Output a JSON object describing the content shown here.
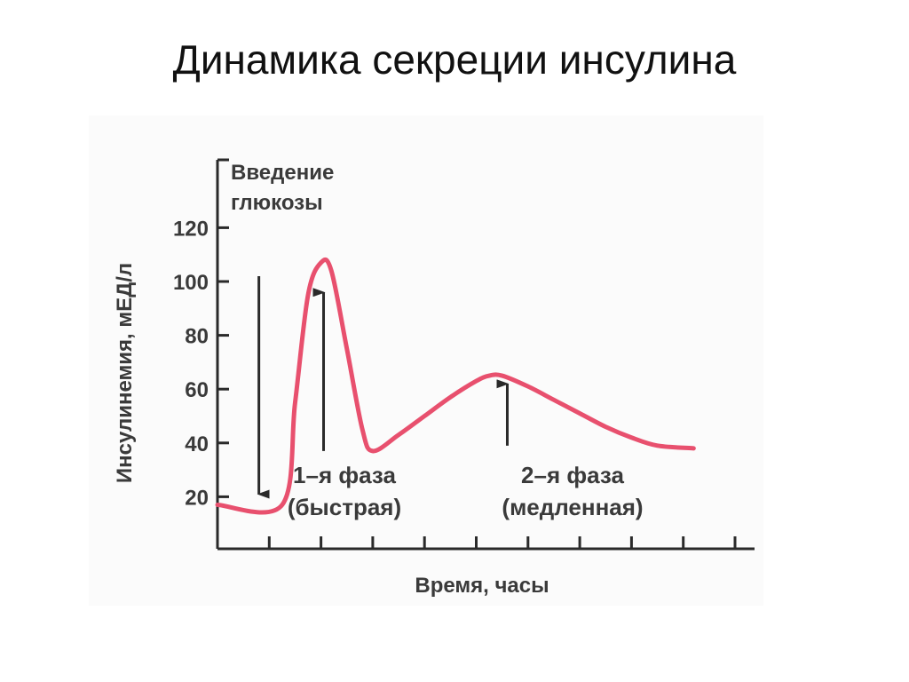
{
  "slide": {
    "title": "Динамика секреции инсулина"
  },
  "chart_data": {
    "type": "line",
    "title": "",
    "xlabel": "Время, часы",
    "ylabel": "Инсулинемия, мЕД/л",
    "yticks": [
      "20",
      "40",
      "60",
      "80",
      "100",
      "120"
    ],
    "ylim": [
      0,
      130
    ],
    "grid": false,
    "legend": "none",
    "series": [
      {
        "name": "",
        "color": "#e8506e",
        "points": [
          {
            "x": 0,
            "y": 17
          },
          {
            "x": 1.25,
            "y": 17
          },
          {
            "x": 1.5,
            "y": 55
          },
          {
            "x": 1.75,
            "y": 95
          },
          {
            "x": 2.0,
            "y": 107
          },
          {
            "x": 2.2,
            "y": 104
          },
          {
            "x": 2.5,
            "y": 75
          },
          {
            "x": 2.8,
            "y": 45
          },
          {
            "x": 3.0,
            "y": 37
          },
          {
            "x": 3.5,
            "y": 43
          },
          {
            "x": 4.0,
            "y": 50
          },
          {
            "x": 4.5,
            "y": 57
          },
          {
            "x": 5.0,
            "y": 63
          },
          {
            "x": 5.25,
            "y": 65
          },
          {
            "x": 5.5,
            "y": 65
          },
          {
            "x": 6.0,
            "y": 61
          },
          {
            "x": 6.5,
            "y": 56
          },
          {
            "x": 7.0,
            "y": 51
          },
          {
            "x": 7.5,
            "y": 46
          },
          {
            "x": 8.0,
            "y": 42
          },
          {
            "x": 8.5,
            "y": 39
          },
          {
            "x": 9.2,
            "y": 38
          }
        ]
      }
    ],
    "annotations": [
      {
        "id": "glucose",
        "lines": [
          "Введение",
          "глюкозы"
        ],
        "x": 0.8,
        "from_y": 102,
        "to_y": 17
      },
      {
        "id": "phase1",
        "lines": [
          "1–я фаза",
          "(быстрая)"
        ],
        "x": 2.05,
        "from_y": 37,
        "to_y": 92
      },
      {
        "id": "phase2",
        "lines": [
          "2–я фаза",
          "(медленная)"
        ],
        "x": 5.6,
        "from_y": 39,
        "to_y": 58
      }
    ]
  }
}
